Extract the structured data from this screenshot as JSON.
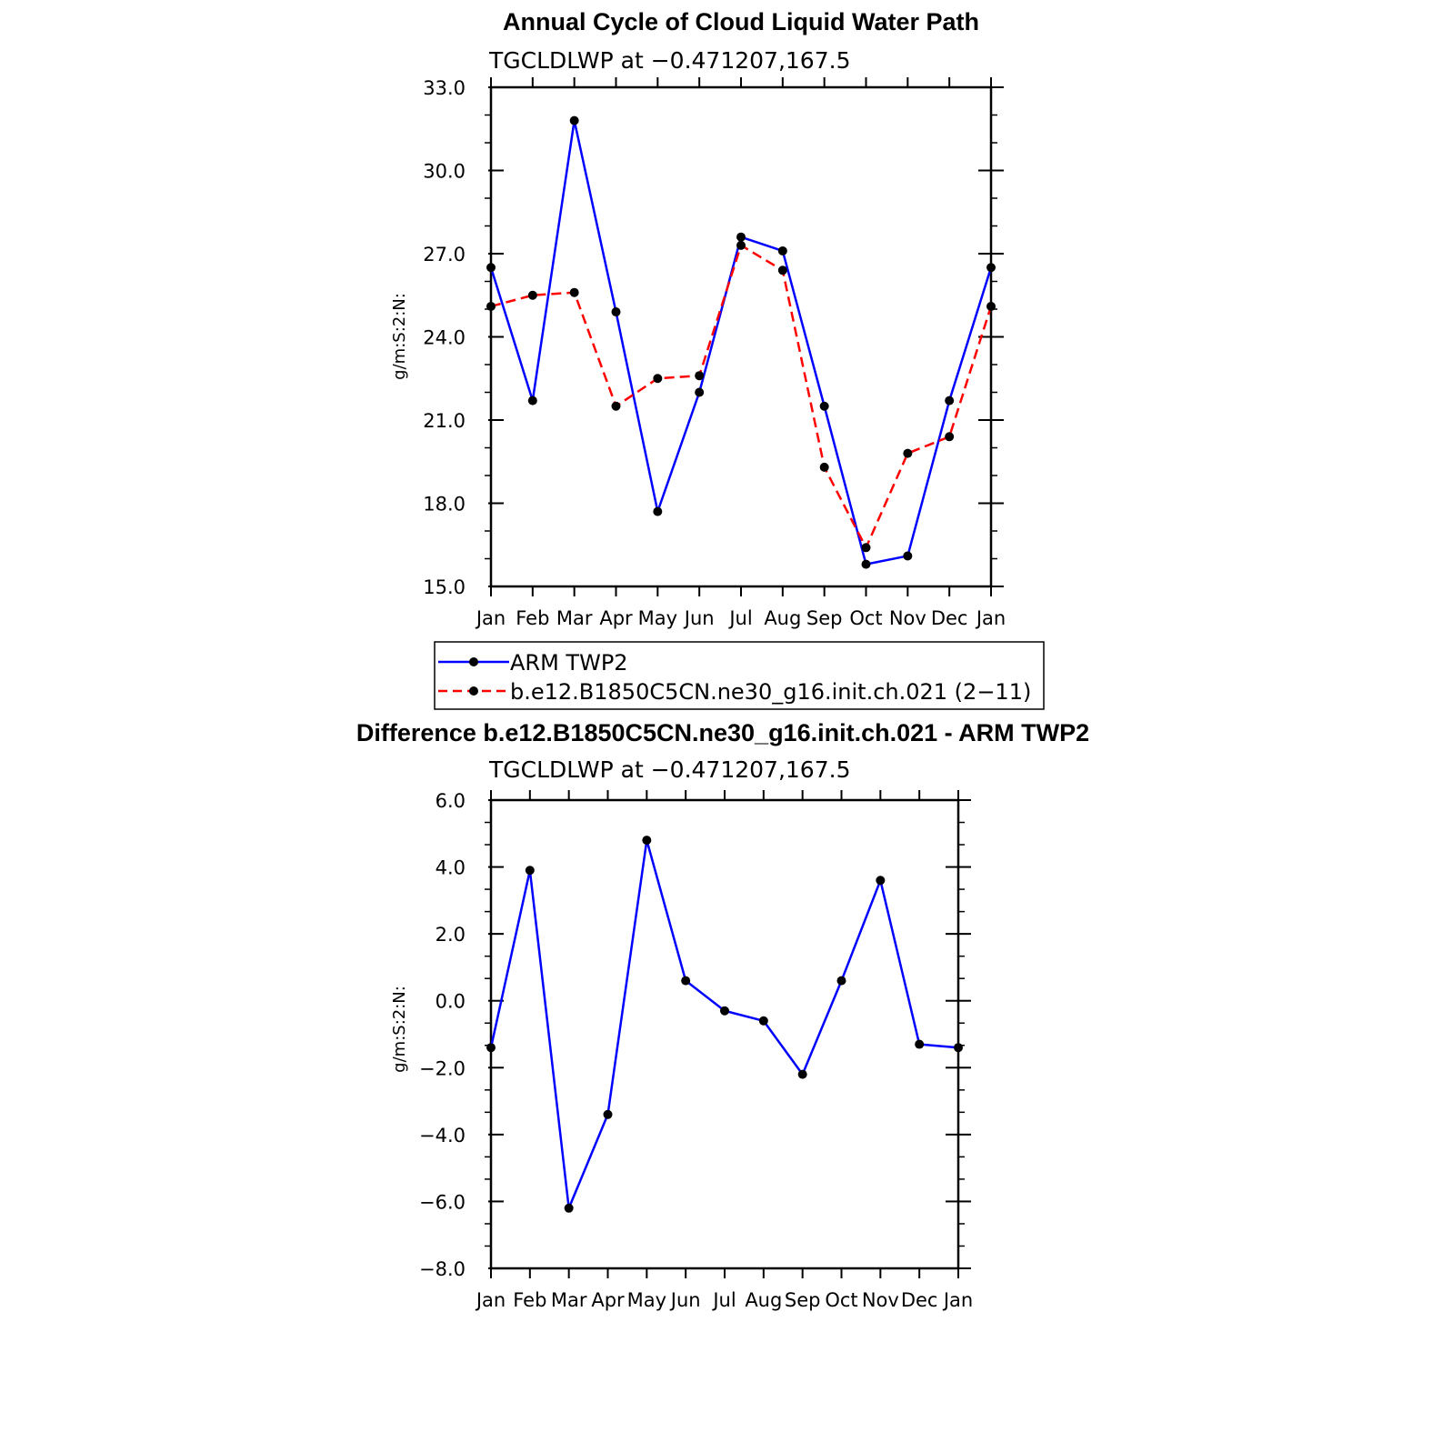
{
  "chart_data": [
    {
      "type": "line",
      "title": "Annual Cycle of Cloud Liquid Water Path",
      "subtitle": "TGCLDLWP  at  −0.471207,167.5",
      "xlabel": "",
      "ylabel": "g/m:S:2:N:",
      "categories": [
        "Jan",
        "Feb",
        "Mar",
        "Apr",
        "May",
        "Jun",
        "Jul",
        "Aug",
        "Sep",
        "Oct",
        "Nov",
        "Dec",
        "Jan"
      ],
      "ylim": [
        15.0,
        33.0
      ],
      "yticks": [
        "33.0",
        "30.0",
        "27.0",
        "24.0",
        "21.0",
        "18.0",
        "15.0"
      ],
      "series": [
        {
          "name": "ARM TWP2",
          "color": "#0000ff",
          "dash": "solid",
          "values": [
            26.5,
            21.7,
            31.8,
            24.9,
            17.7,
            22.0,
            27.6,
            27.1,
            21.5,
            15.8,
            16.1,
            21.7,
            26.5
          ]
        },
        {
          "name": "b.e12.B1850C5CN.ne30_g16.init.ch.021 (2−11)",
          "color": "#ff0000",
          "dash": "dashed",
          "values": [
            25.1,
            25.5,
            25.6,
            21.5,
            22.5,
            22.6,
            27.3,
            26.4,
            19.3,
            16.4,
            19.8,
            20.4,
            25.1
          ]
        }
      ],
      "legend_position": "below"
    },
    {
      "type": "line",
      "title": "Difference b.e12.B1850C5CN.ne30_g16.init.ch.021 - ARM TWP2",
      "subtitle": "TGCLDLWP  at  −0.471207,167.5",
      "xlabel": "",
      "ylabel": "g/m:S:2:N:",
      "categories": [
        "Jan",
        "Feb",
        "Mar",
        "Apr",
        "May",
        "Jun",
        "Jul",
        "Aug",
        "Sep",
        "Oct",
        "Nov",
        "Dec",
        "Jan"
      ],
      "ylim": [
        -8.0,
        6.0
      ],
      "yticks": [
        "6.0",
        "4.0",
        "2.0",
        "0.0",
        "−2.0",
        "−4.0",
        "−6.0",
        "−8.0"
      ],
      "series": [
        {
          "color": "#0000ff",
          "dash": "solid",
          "values": [
            -1.4,
            3.9,
            -6.2,
            -3.4,
            4.8,
            0.6,
            -0.3,
            -0.6,
            -2.2,
            0.6,
            3.6,
            -1.3,
            -1.4
          ]
        }
      ]
    }
  ]
}
